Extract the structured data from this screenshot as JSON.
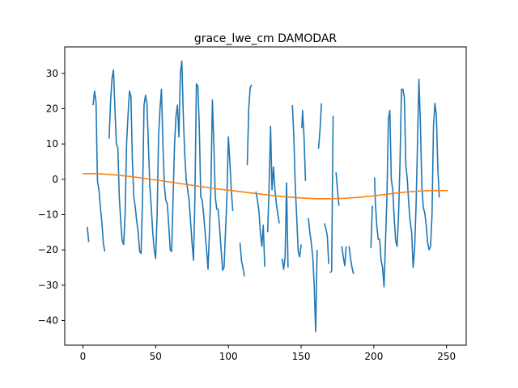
{
  "chart_data": {
    "type": "line",
    "title": "grace_lwe_cm DAMODAR",
    "xlabel": "",
    "ylabel": "",
    "xlim": [
      -12.5,
      263.5
    ],
    "ylim": [
      -47,
      37.5
    ],
    "xticks": [
      0,
      50,
      100,
      150,
      200,
      250
    ],
    "yticks": [
      -40,
      -30,
      -20,
      -10,
      0,
      10,
      20,
      30
    ],
    "grid": false,
    "legend": "none",
    "series": [
      {
        "color": "#1f77b4",
        "segments": [
          [
            [
              3,
              -13.5
            ],
            [
              4,
              -17.8
            ]
          ],
          [
            [
              7,
              21
            ],
            [
              8,
              25
            ],
            [
              9,
              22
            ],
            [
              10,
              -0.5
            ],
            [
              11,
              -3
            ],
            [
              12,
              -8
            ],
            [
              13,
              -12
            ],
            [
              14,
              -18
            ],
            [
              15,
              -20.5
            ]
          ],
          [
            [
              18,
              11.5
            ],
            [
              19,
              22
            ],
            [
              20,
              28.5
            ],
            [
              21,
              31
            ],
            [
              22,
              20
            ],
            [
              23,
              10
            ],
            [
              24,
              9
            ],
            [
              25,
              -5
            ],
            [
              26,
              -12
            ],
            [
              27,
              -17.5
            ],
            [
              28,
              -18.5
            ],
            [
              29,
              -10
            ],
            [
              30,
              10
            ],
            [
              31,
              18
            ],
            [
              32,
              25
            ],
            [
              33,
              23.5
            ],
            [
              34,
              5
            ],
            [
              35,
              -5
            ],
            [
              36,
              -8
            ],
            [
              37,
              -12
            ],
            [
              38,
              -15
            ],
            [
              39,
              -20.5
            ],
            [
              40,
              -21
            ],
            [
              41,
              -5
            ],
            [
              42,
              21
            ],
            [
              43,
              23.8
            ],
            [
              44,
              21.5
            ],
            [
              45,
              10
            ],
            [
              46,
              -2
            ],
            [
              47,
              -8
            ],
            [
              48,
              -15
            ],
            [
              49,
              -20
            ],
            [
              50,
              -22.5
            ],
            [
              51,
              -10
            ],
            [
              52,
              12
            ],
            [
              53,
              20
            ],
            [
              54,
              25.5
            ],
            [
              55,
              10
            ],
            [
              56,
              -2
            ],
            [
              57,
              -6
            ],
            [
              58,
              -7
            ],
            [
              59,
              -13
            ],
            [
              60,
              -20
            ],
            [
              61,
              -20.5
            ],
            [
              62,
              -5
            ],
            [
              63,
              10
            ],
            [
              64,
              18
            ],
            [
              65,
              21
            ],
            [
              66,
              12
            ],
            [
              67,
              30
            ],
            [
              68,
              33.5
            ],
            [
              69,
              18
            ],
            [
              70,
              7
            ],
            [
              71,
              0
            ],
            [
              72,
              -3
            ],
            [
              73,
              -6
            ],
            [
              74,
              -12
            ],
            [
              75,
              -18
            ],
            [
              76,
              -23
            ],
            [
              77,
              -5
            ],
            [
              78,
              27
            ],
            [
              79,
              26.5
            ],
            [
              80,
              15
            ],
            [
              81,
              -5
            ],
            [
              82,
              -6
            ],
            [
              83,
              -10
            ],
            [
              84,
              -15
            ],
            [
              85,
              -20
            ],
            [
              86,
              -25.5
            ],
            [
              87,
              -15
            ],
            [
              88,
              -2
            ],
            [
              89,
              22.5
            ],
            [
              90,
              10
            ],
            [
              91,
              -5
            ],
            [
              92,
              -8.5
            ],
            [
              93,
              -8.5
            ],
            [
              94,
              -14
            ],
            [
              95,
              -20
            ],
            [
              96,
              -25.8
            ],
            [
              97,
              -25
            ],
            [
              98,
              -15
            ],
            [
              99,
              -5
            ],
            [
              100,
              12
            ],
            [
              101,
              5
            ],
            [
              102,
              -3
            ],
            [
              103,
              -9
            ]
          ],
          [
            [
              108,
              -18
            ],
            [
              109,
              -23
            ],
            [
              110,
              -25
            ],
            [
              111,
              -27.5
            ]
          ],
          [
            [
              113,
              4
            ],
            [
              114,
              20
            ],
            [
              115,
              26
            ],
            [
              116,
              26.8
            ]
          ],
          [
            [
              119,
              -3.5
            ],
            [
              120,
              -6
            ],
            [
              121,
              -9
            ],
            [
              122,
              -15
            ],
            [
              123,
              -19
            ],
            [
              124,
              -13
            ],
            [
              125,
              -24.8
            ]
          ],
          [
            [
              127,
              -15
            ],
            [
              128,
              -2
            ],
            [
              129,
              15
            ],
            [
              130,
              -3
            ],
            [
              131,
              3.5
            ],
            [
              132,
              -3
            ],
            [
              133,
              -7
            ],
            [
              134,
              -10
            ],
            [
              135,
              -12.5
            ]
          ],
          [
            [
              137,
              -22.5
            ],
            [
              138,
              -25.5
            ],
            [
              139,
              -22
            ],
            [
              140,
              -1
            ],
            [
              141,
              -25
            ]
          ],
          [
            [
              144,
              21
            ],
            [
              145,
              12
            ],
            [
              146,
              -2
            ],
            [
              147,
              -11
            ],
            [
              148,
              -20.5
            ],
            [
              149,
              -22
            ],
            [
              150,
              -18.5
            ]
          ],
          [
            [
              150.5,
              14.5
            ],
            [
              151,
              19.5
            ],
            [
              152,
              12
            ],
            [
              153,
              -0.5
            ]
          ],
          [
            [
              155,
              -11
            ],
            [
              156,
              -15
            ],
            [
              157,
              -18
            ],
            [
              158,
              -22
            ],
            [
              159,
              -30
            ],
            [
              160,
              -43.2
            ],
            [
              161,
              -20
            ]
          ],
          [
            [
              162,
              8.7
            ],
            [
              163,
              14
            ],
            [
              164,
              21.5
            ]
          ],
          [
            [
              166,
              -12.5
            ],
            [
              167,
              -14
            ],
            [
              168,
              -16
            ],
            [
              169,
              -24
            ]
          ],
          [
            [
              170,
              -26.5
            ],
            [
              171,
              -26
            ],
            [
              172,
              18
            ]
          ],
          [
            [
              174,
              2
            ],
            [
              175,
              -3
            ],
            [
              176,
              -7.5
            ]
          ],
          [
            [
              178,
              -19
            ],
            [
              179,
              -22
            ],
            [
              180,
              -24.5
            ],
            [
              181,
              -19
            ]
          ],
          [
            [
              183,
              -19
            ],
            [
              184,
              -22.5
            ],
            [
              185,
              -25
            ],
            [
              186,
              -26.8
            ]
          ],
          [
            [
              198,
              -19.5
            ],
            [
              199,
              -7.5
            ]
          ],
          [
            [
              200.5,
              0.5
            ],
            [
              201,
              -6
            ],
            [
              202,
              -13
            ],
            [
              203,
              -17
            ],
            [
              204,
              -17
            ],
            [
              205,
              -23
            ],
            [
              206,
              -25
            ],
            [
              207,
              -30.5
            ],
            [
              208,
              -18
            ],
            [
              209,
              -5
            ],
            [
              210,
              17
            ],
            [
              211,
              19.5
            ],
            [
              212,
              0
            ],
            [
              213,
              -3
            ],
            [
              214,
              -11
            ],
            [
              215,
              -17.5
            ],
            [
              216,
              -19
            ],
            [
              217,
              -10
            ],
            [
              218,
              5
            ],
            [
              219,
              25.5
            ],
            [
              220,
              25.5
            ],
            [
              221,
              23
            ],
            [
              222,
              4
            ],
            [
              223,
              0
            ],
            [
              224,
              -7
            ],
            [
              225,
              -12
            ],
            [
              226,
              -15
            ],
            [
              227,
              -25
            ],
            [
              228,
              -20
            ],
            [
              229,
              -8
            ],
            [
              230,
              10
            ],
            [
              231,
              28.3
            ],
            [
              232,
              16
            ],
            [
              233,
              -2
            ],
            [
              234,
              -8
            ],
            [
              235,
              -9.5
            ],
            [
              236,
              -13
            ],
            [
              237,
              -18
            ],
            [
              238,
              -20
            ],
            [
              239,
              -19
            ],
            [
              240,
              -10
            ],
            [
              241,
              15
            ],
            [
              242,
              21.5
            ],
            [
              243,
              18
            ],
            [
              244,
              3
            ],
            [
              245,
              -5.2
            ]
          ]
        ]
      },
      {
        "color": "#ff7f0e",
        "segments": [
          [
            [
              0,
              1.6
            ],
            [
              10,
              1.6
            ],
            [
              20,
              1.3
            ],
            [
              30,
              0.9
            ],
            [
              40,
              0.4
            ],
            [
              50,
              -0.2
            ],
            [
              60,
              -0.8
            ],
            [
              70,
              -1.4
            ],
            [
              80,
              -2.0
            ],
            [
              90,
              -2.6
            ],
            [
              100,
              -3.1
            ],
            [
              110,
              -3.6
            ],
            [
              120,
              -4.1
            ],
            [
              130,
              -4.6
            ],
            [
              140,
              -5.0
            ],
            [
              150,
              -5.3
            ],
            [
              160,
              -5.5
            ],
            [
              170,
              -5.5
            ],
            [
              180,
              -5.4
            ],
            [
              190,
              -5.1
            ],
            [
              200,
              -4.7
            ],
            [
              210,
              -4.2
            ],
            [
              220,
              -3.7
            ],
            [
              230,
              -3.4
            ],
            [
              240,
              -3.2
            ],
            [
              251,
              -3.2
            ]
          ]
        ]
      }
    ]
  }
}
